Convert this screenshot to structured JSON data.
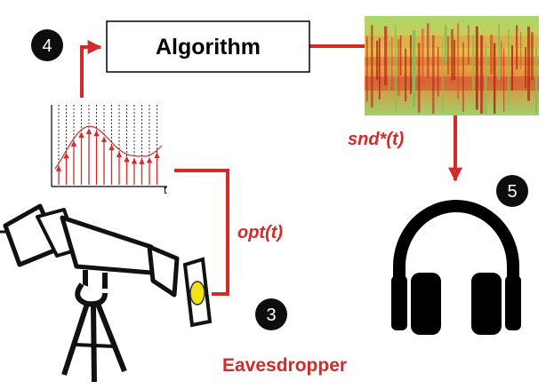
{
  "steps": {
    "step3": "3",
    "step4": "4",
    "step5": "5"
  },
  "algorithm_label": "Algorithm",
  "labels": {
    "optical_signal": "opt(t)",
    "recovered_sound": "snd*(t)",
    "eavesdropper": "Eavesdropper"
  },
  "signal_axis_label": "t",
  "colors": {
    "red": "#d42a2a",
    "black": "#000000",
    "badge": "#0d0d0d",
    "lens": "#f2e21a"
  },
  "icons": {
    "telescope": "telescope-icon",
    "headphones": "headphones-icon",
    "spectrogram": "spectrogram-image"
  }
}
